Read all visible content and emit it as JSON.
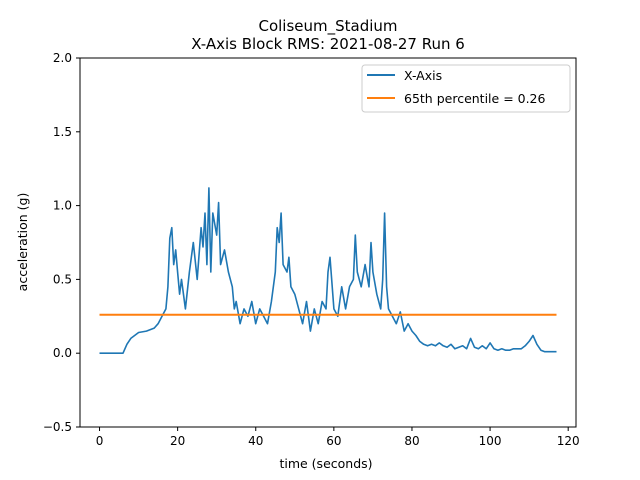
{
  "chart_data": {
    "type": "line",
    "title": "Coliseum_Stadium",
    "subtitle": "X-Axis Block RMS: 2021-08-27 Run 6",
    "xlabel": "time (seconds)",
    "ylabel": "acceleration (g)",
    "xlim": [
      -5,
      122
    ],
    "ylim": [
      -0.5,
      2.0
    ],
    "xticks": [
      0,
      20,
      40,
      60,
      80,
      100,
      120
    ],
    "yticks": [
      -0.5,
      0.0,
      0.5,
      1.0,
      1.5,
      2.0
    ],
    "ytick_labels": [
      "−0.5",
      "0.0",
      "0.5",
      "1.0",
      "1.5",
      "2.0"
    ],
    "grid": false,
    "legend_position": "top-right",
    "series": [
      {
        "name": "X-Axis",
        "color": "#1f77b4",
        "x": [
          0,
          6,
          7,
          8,
          10,
          12,
          14,
          15,
          16,
          17,
          17.5,
          18,
          18.5,
          19,
          19.5,
          20,
          20.5,
          21,
          22,
          23,
          24,
          25,
          26,
          26.5,
          27,
          27.5,
          28,
          28.5,
          29,
          30,
          30.5,
          31,
          32,
          33,
          34,
          34.5,
          35,
          36,
          37,
          38,
          39,
          40,
          41,
          42,
          43,
          44,
          45,
          45.5,
          46,
          46.5,
          47,
          48,
          48.5,
          49,
          50,
          51,
          52,
          53,
          54,
          55,
          56,
          57,
          58,
          58.5,
          59,
          60,
          61,
          62,
          63,
          64,
          65,
          65.5,
          66,
          67,
          68,
          69,
          69.5,
          70,
          71,
          72,
          72.5,
          73,
          73.5,
          74,
          75,
          76,
          77,
          78,
          79,
          80,
          81,
          82,
          83,
          84,
          85,
          86,
          87,
          88,
          89,
          90,
          91,
          92,
          93,
          94,
          95,
          96,
          97,
          98,
          99,
          100,
          101,
          102,
          103,
          104,
          105,
          106,
          107,
          108,
          109,
          110,
          111,
          112,
          113,
          114,
          117
        ],
        "values": [
          0.0,
          0.0,
          0.06,
          0.1,
          0.14,
          0.15,
          0.17,
          0.2,
          0.25,
          0.3,
          0.45,
          0.78,
          0.85,
          0.6,
          0.7,
          0.55,
          0.4,
          0.5,
          0.3,
          0.55,
          0.75,
          0.5,
          0.85,
          0.72,
          0.95,
          0.6,
          1.12,
          0.55,
          0.95,
          0.8,
          1.02,
          0.6,
          0.7,
          0.55,
          0.45,
          0.3,
          0.35,
          0.2,
          0.3,
          0.25,
          0.35,
          0.2,
          0.3,
          0.25,
          0.2,
          0.35,
          0.55,
          0.85,
          0.75,
          0.95,
          0.6,
          0.55,
          0.65,
          0.45,
          0.4,
          0.3,
          0.2,
          0.35,
          0.15,
          0.3,
          0.2,
          0.35,
          0.3,
          0.55,
          0.65,
          0.3,
          0.25,
          0.45,
          0.3,
          0.45,
          0.5,
          0.8,
          0.55,
          0.45,
          0.6,
          0.45,
          0.75,
          0.55,
          0.4,
          0.3,
          0.5,
          0.95,
          0.45,
          0.3,
          0.25,
          0.2,
          0.28,
          0.15,
          0.2,
          0.15,
          0.12,
          0.08,
          0.06,
          0.05,
          0.06,
          0.05,
          0.07,
          0.05,
          0.04,
          0.06,
          0.03,
          0.04,
          0.05,
          0.03,
          0.1,
          0.04,
          0.03,
          0.05,
          0.03,
          0.07,
          0.03,
          0.02,
          0.03,
          0.02,
          0.02,
          0.03,
          0.03,
          0.03,
          0.05,
          0.08,
          0.12,
          0.06,
          0.02,
          0.01,
          0.01
        ]
      },
      {
        "name": "65th percentile = 0.26",
        "color": "#ff7f0e",
        "x": [
          0,
          117
        ],
        "values": [
          0.26,
          0.26
        ]
      }
    ]
  }
}
